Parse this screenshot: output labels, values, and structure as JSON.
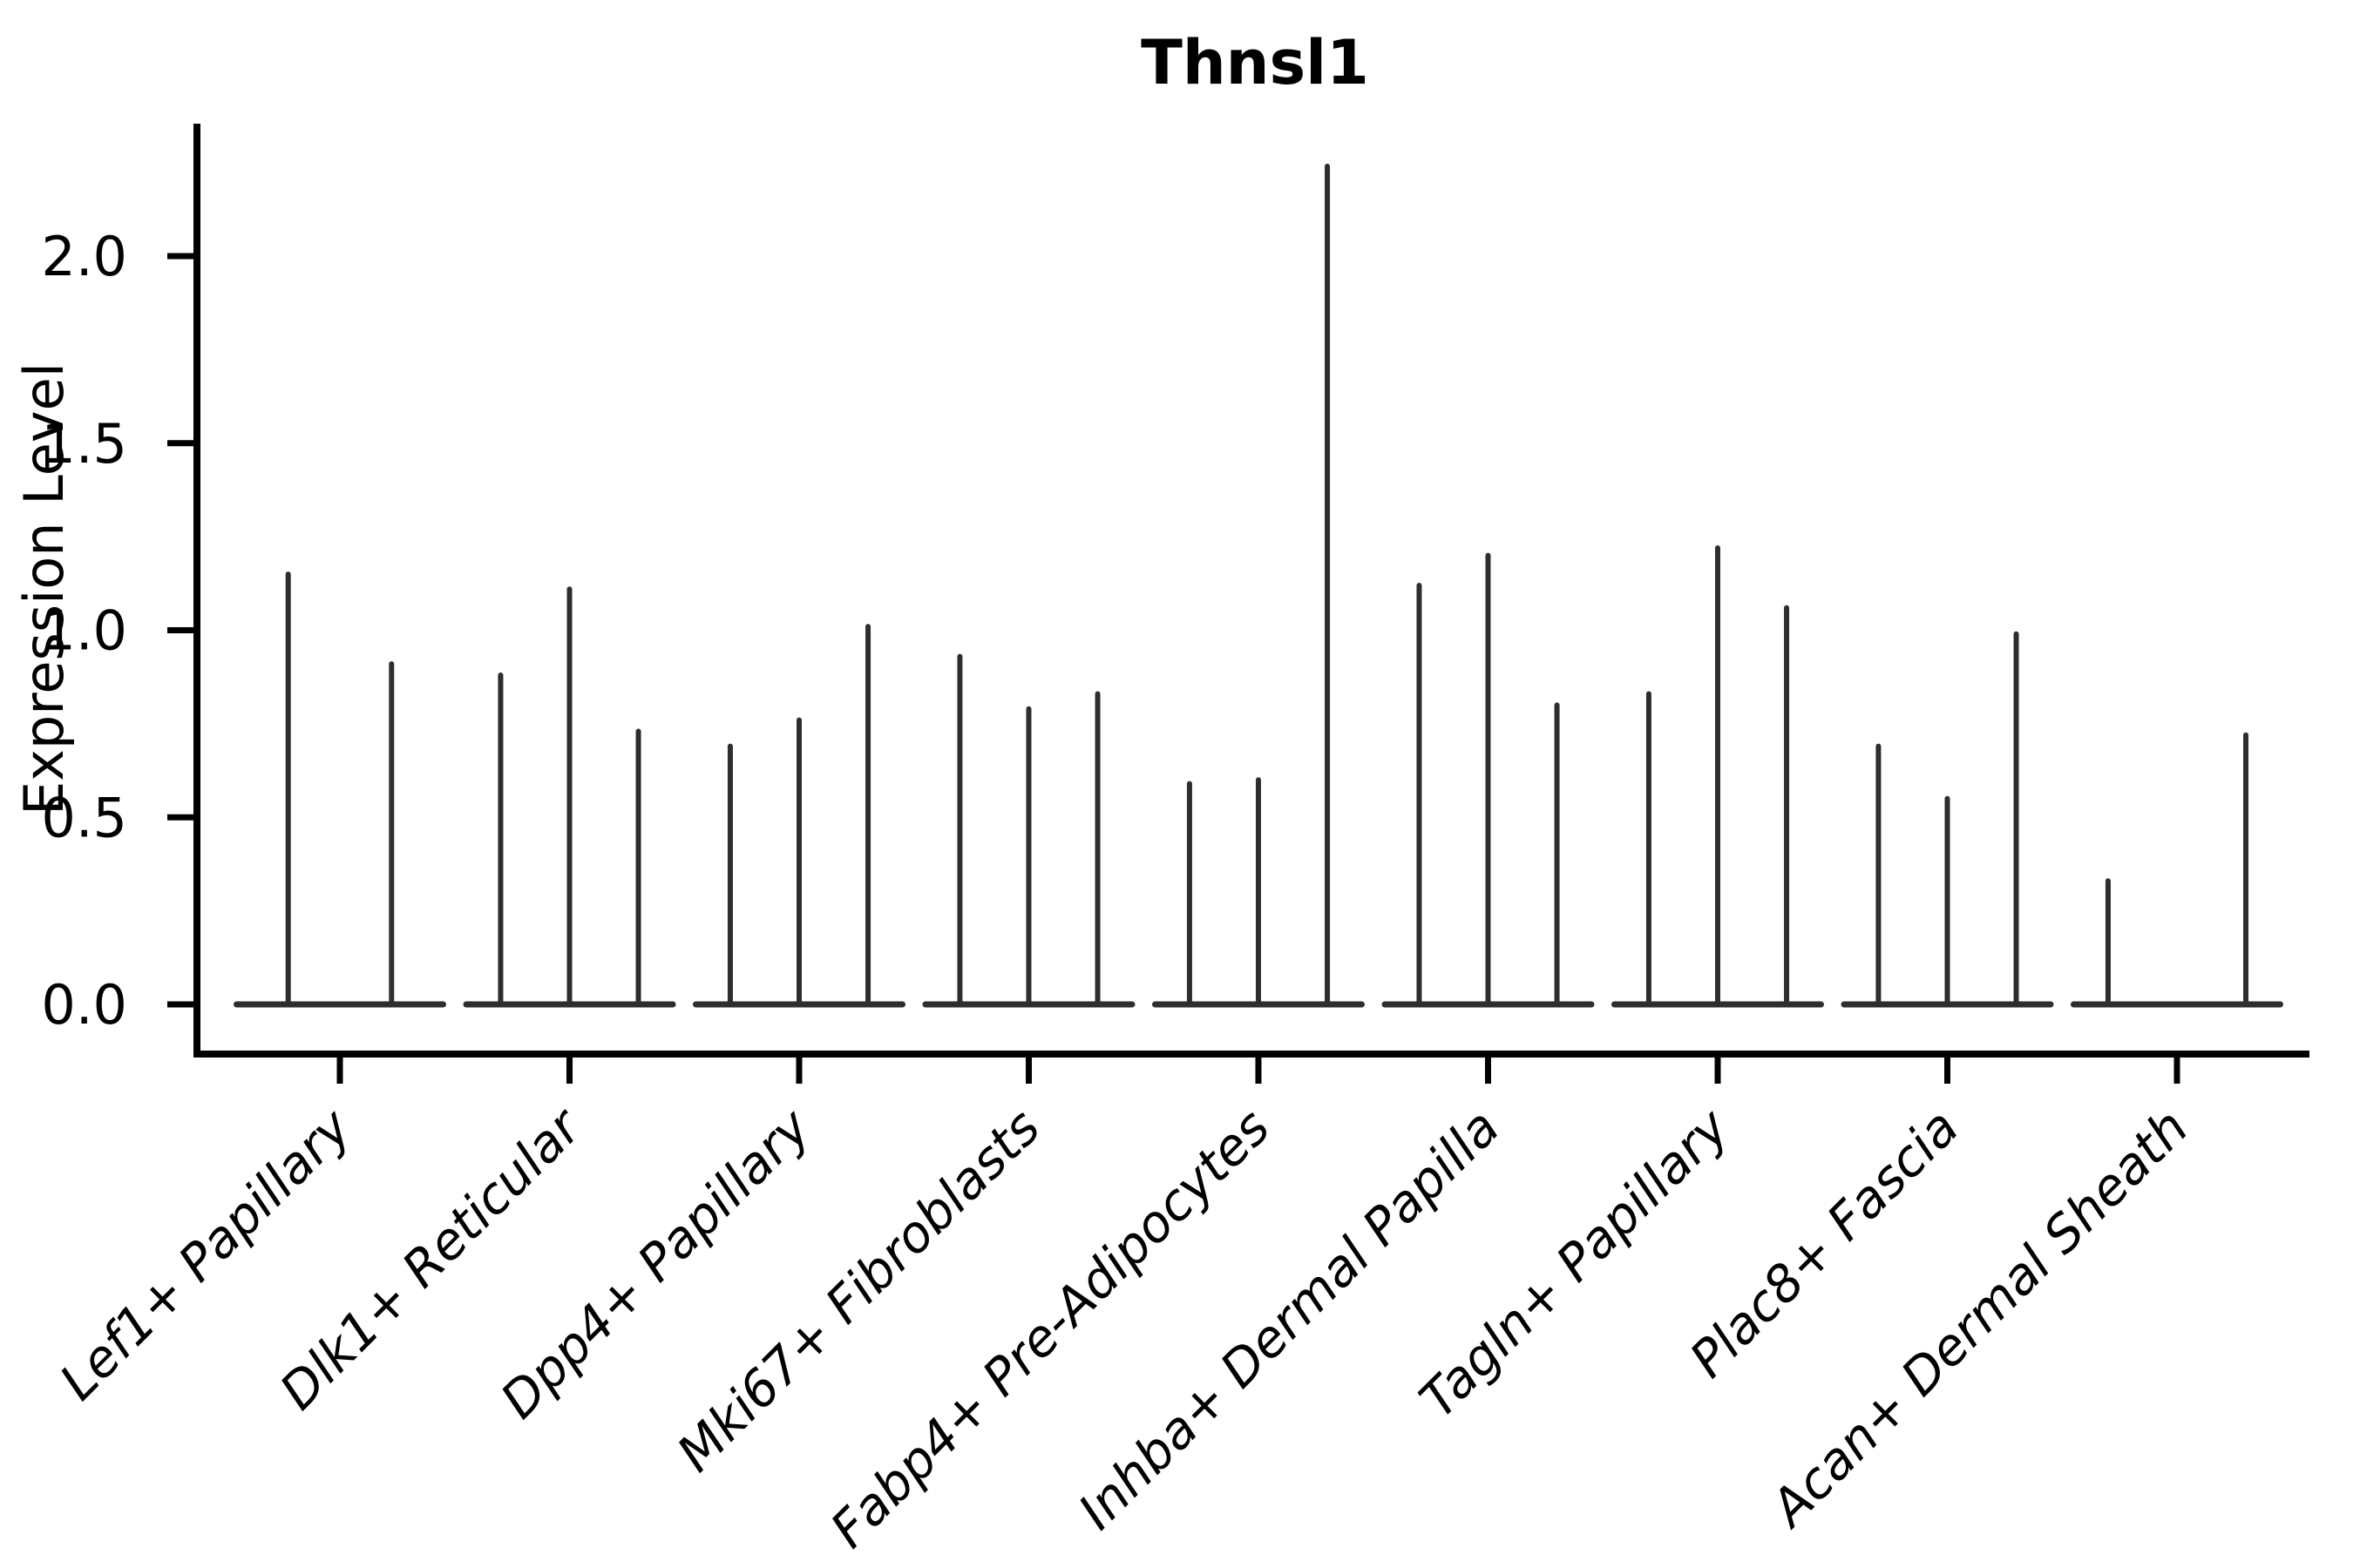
{
  "figure": {
    "title": "Thnsl1",
    "ylabel": "Expression Level",
    "background_color": "#ffffff",
    "text_color": "#000000",
    "axis_color": "#000000",
    "violin_color": "#2e2e2e"
  },
  "chart_data": {
    "type": "violin",
    "title": "Thnsl1",
    "xlabel": "",
    "ylabel": "Expression Level",
    "ytick_labels": [
      "0.0",
      "0.5",
      "1.0",
      "1.5",
      "2.0"
    ],
    "ytick_values": [
      0.0,
      0.5,
      1.0,
      1.5,
      2.0
    ],
    "ylim": [
      -0.13,
      2.34
    ],
    "grid": false,
    "legend_position": "none",
    "group_width": 0.9,
    "categories": [
      "Lef1+ Papillary",
      "Dlk1+ Reticular",
      "Dpp4+ Papillary",
      "Mki67+ Fibroblasts",
      "Fabp4+ Pre-Adipocytes",
      "Inhba+ Dermal Papilla",
      "Tagln+ Papillary",
      "Plac8+ Fascia",
      "Acan+ Dermal Sheath"
    ],
    "series": [
      {
        "category": "Lef1+ Papillary",
        "violins": [
          {
            "offset": -0.225,
            "max": 1.15
          },
          {
            "offset": 0.225,
            "max": 0.91
          }
        ]
      },
      {
        "category": "Dlk1+ Reticular",
        "violins": [
          {
            "offset": -0.3,
            "max": 0.88
          },
          {
            "offset": 0,
            "max": 1.11
          },
          {
            "offset": 0.3,
            "max": 0.73
          }
        ]
      },
      {
        "category": "Dpp4+ Papillary",
        "violins": [
          {
            "offset": -0.3,
            "max": 0.69
          },
          {
            "offset": 0,
            "max": 0.76
          },
          {
            "offset": 0.3,
            "max": 1.01
          }
        ]
      },
      {
        "category": "Mki67+ Fibroblasts",
        "violins": [
          {
            "offset": -0.3,
            "max": 0.93
          },
          {
            "offset": 0,
            "max": 0.79
          },
          {
            "offset": 0.3,
            "max": 0.83
          }
        ]
      },
      {
        "category": "Fabp4+ Pre-Adipocytes",
        "violins": [
          {
            "offset": -0.3,
            "max": 0.59
          },
          {
            "offset": 0,
            "max": 0.6
          },
          {
            "offset": 0.3,
            "max": 2.24
          }
        ]
      },
      {
        "category": "Inhba+ Dermal Papilla",
        "violins": [
          {
            "offset": -0.3,
            "max": 1.12
          },
          {
            "offset": 0,
            "max": 1.2
          },
          {
            "offset": 0.3,
            "max": 0.8
          }
        ]
      },
      {
        "category": "Tagln+ Papillary",
        "violins": [
          {
            "offset": -0.3,
            "max": 0.83
          },
          {
            "offset": 0,
            "max": 1.22
          },
          {
            "offset": 0.3,
            "max": 1.06
          }
        ]
      },
      {
        "category": "Plac8+ Fascia",
        "violins": [
          {
            "offset": -0.3,
            "max": 0.69
          },
          {
            "offset": 0,
            "max": 0.55
          },
          {
            "offset": 0.3,
            "max": 0.99
          }
        ]
      },
      {
        "category": "Acan+ Dermal Sheath",
        "violins": [
          {
            "offset": -0.3,
            "max": 0.33
          },
          {
            "offset": 0.3,
            "max": 0.72
          }
        ]
      }
    ],
    "colors": {
      "violin": "#2e2e2e",
      "axis": "#000000",
      "text": "#000000",
      "background": "#ffffff"
    }
  }
}
